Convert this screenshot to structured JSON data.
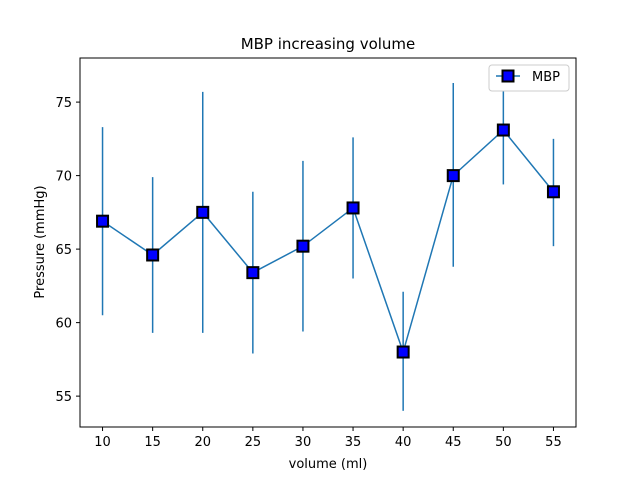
{
  "chart_data": {
    "type": "line",
    "title": "MBP increasing volume",
    "xlabel": "volume (ml)",
    "ylabel": "Pressure (mmHg)",
    "x": [
      10,
      15,
      20,
      25,
      30,
      35,
      40,
      45,
      50,
      55
    ],
    "xticks": [
      "10",
      "15",
      "20",
      "25",
      "30",
      "35",
      "40",
      "45",
      "50",
      "55"
    ],
    "yticks": [
      "55",
      "60",
      "65",
      "70",
      "75"
    ],
    "xlim": [
      7.75,
      57.25
    ],
    "ylim": [
      52.9,
      78.0
    ],
    "series": [
      {
        "name": "MBP",
        "values": [
          66.9,
          64.6,
          67.5,
          63.4,
          65.2,
          67.8,
          58.0,
          70.0,
          73.1,
          68.9
        ],
        "error_low": [
          60.5,
          59.3,
          59.3,
          57.9,
          59.4,
          63.0,
          54.0,
          63.8,
          69.4,
          65.2
        ],
        "error_high": [
          73.3,
          69.9,
          75.7,
          68.9,
          71.0,
          72.6,
          62.1,
          76.3,
          77.0,
          72.5
        ],
        "line_color": "#1f77b4",
        "marker_face": "#0000ff",
        "marker_edge": "#000000",
        "marker": "square"
      }
    ],
    "legend": {
      "position": "top-right",
      "entries": [
        "MBP"
      ]
    },
    "grid": false
  }
}
